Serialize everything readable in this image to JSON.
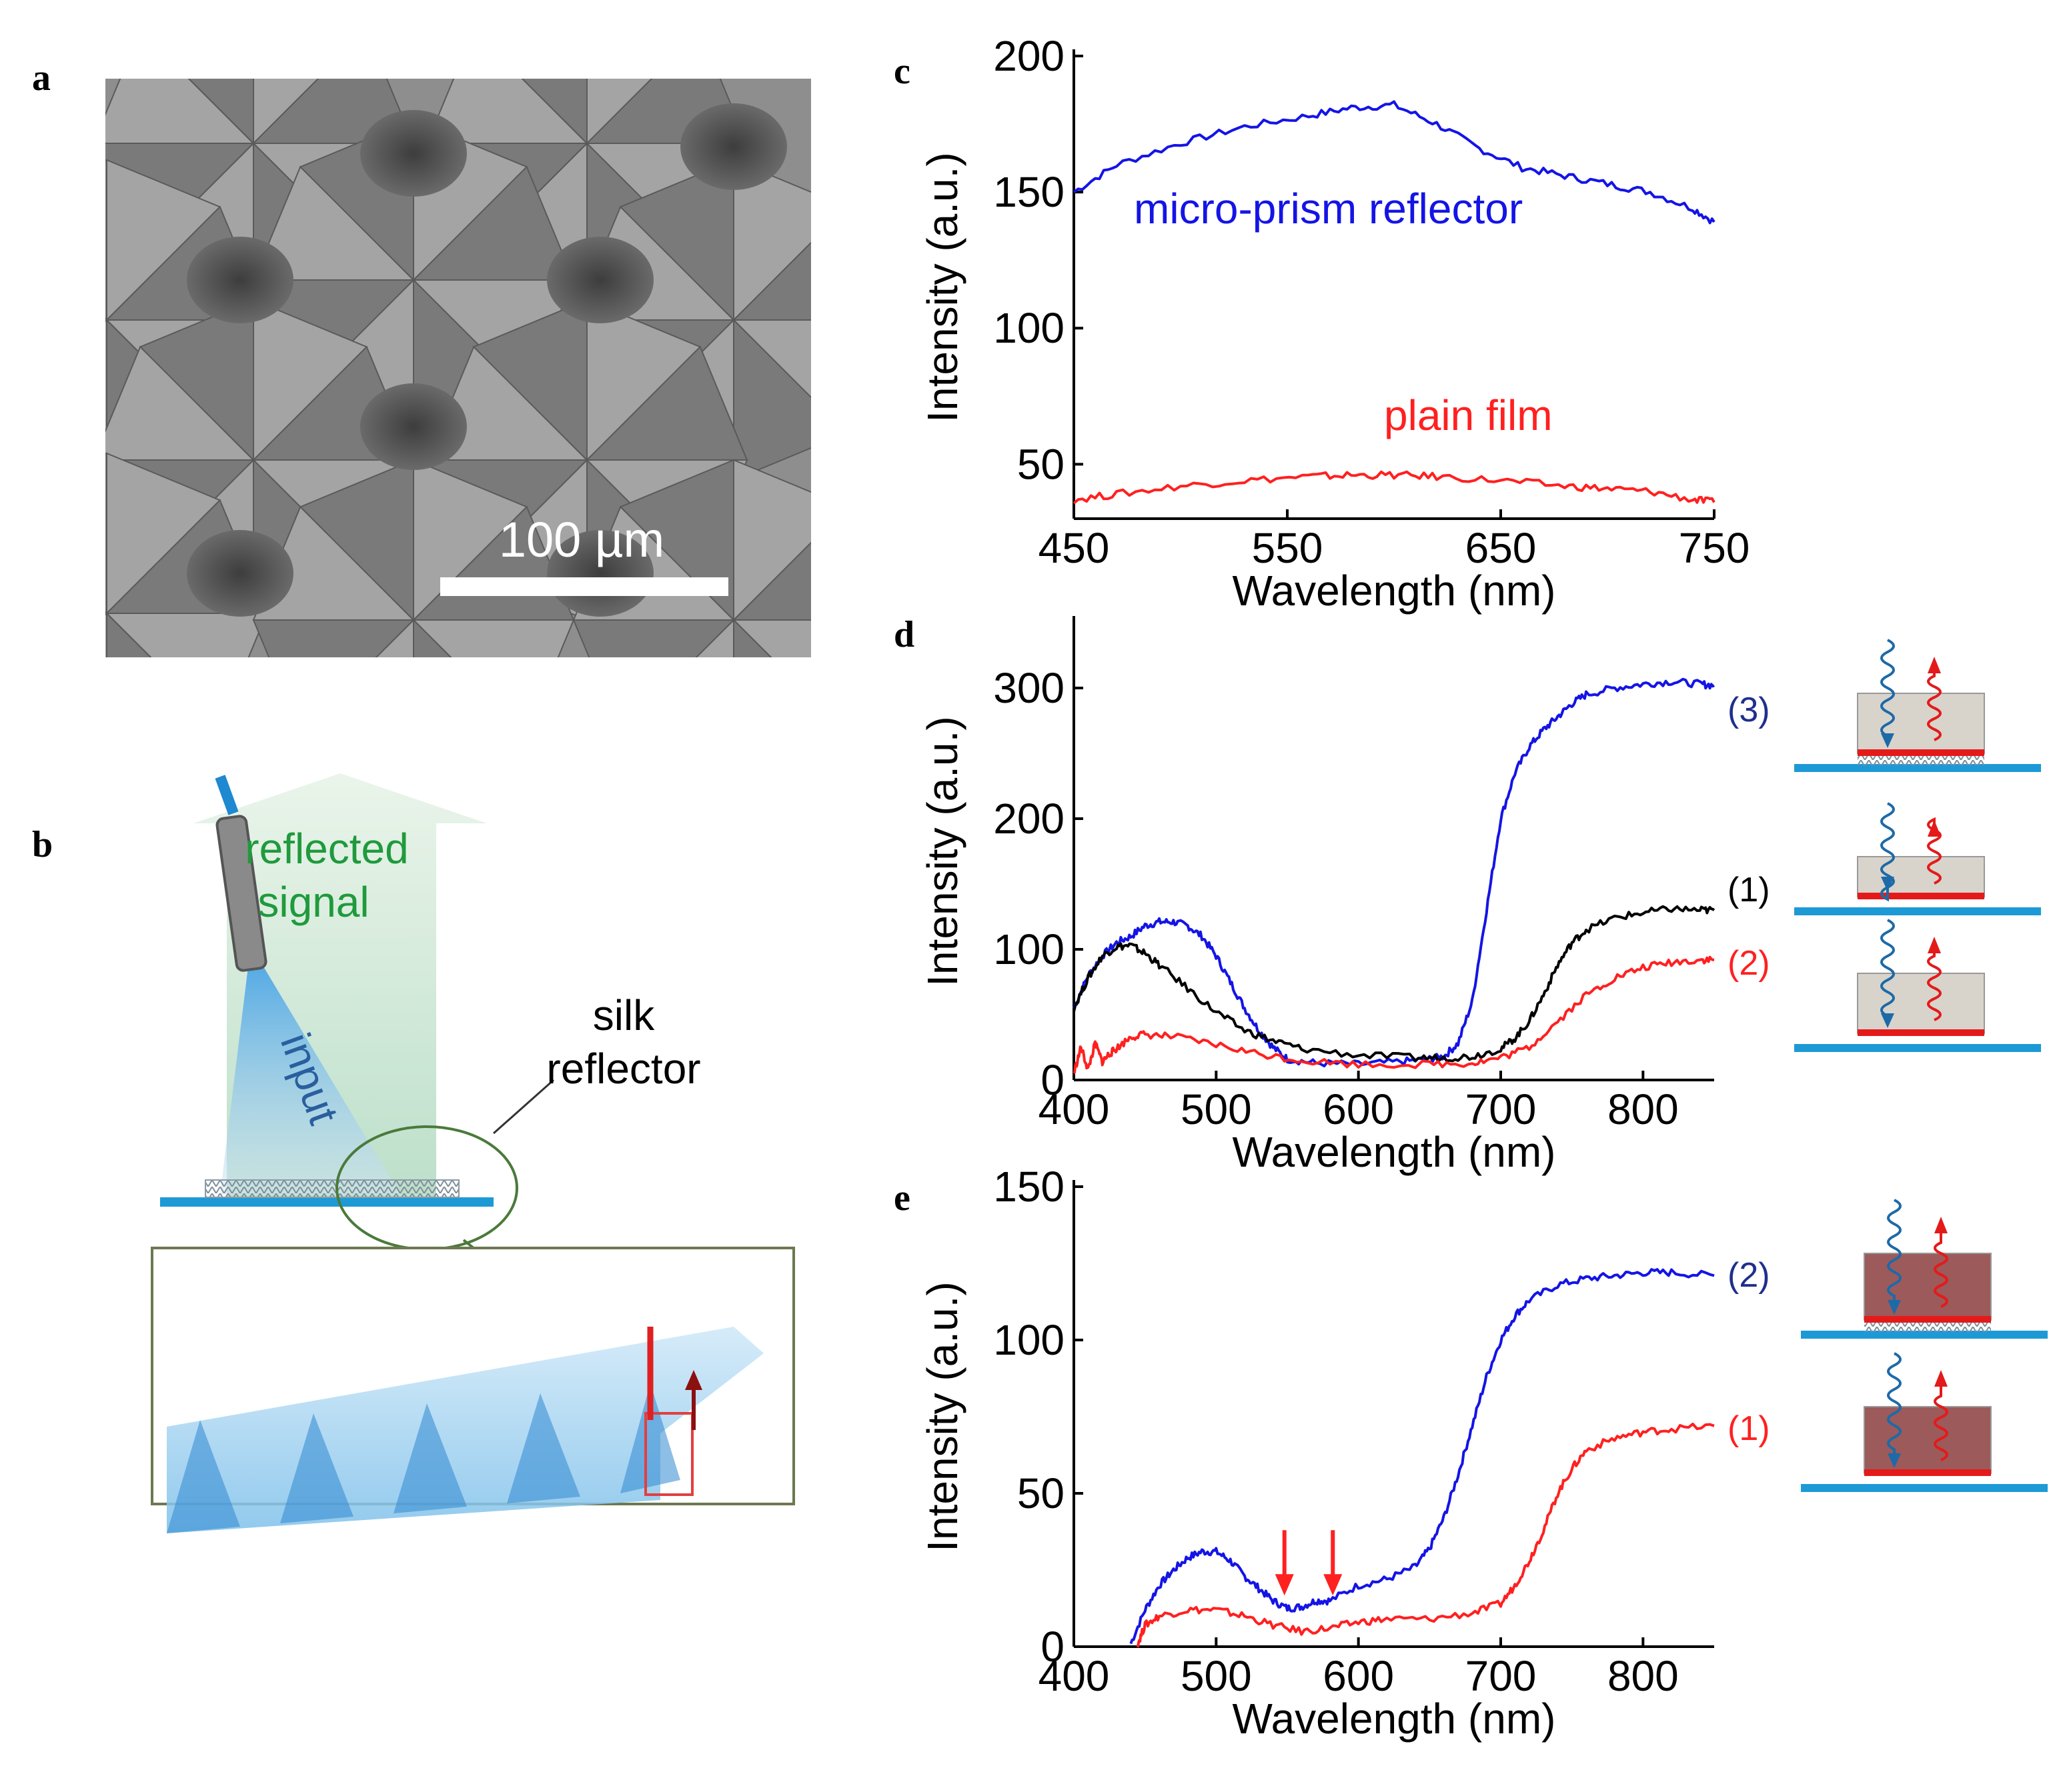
{
  "panel_a": {
    "label": "a",
    "scale_bar_text": "100 µm"
  },
  "panel_b": {
    "label": "b",
    "reflected_signal_line1": "reflected",
    "reflected_signal_line2": "signal",
    "input_text": "input",
    "silk_reflector_line1": "silk",
    "silk_reflector_line2": "reflector"
  },
  "colors": {
    "blue": "#1414e6",
    "red": "#ff2020",
    "black": "#000000",
    "green_text": "#1f9a3c",
    "navy": "#1f2f8c"
  },
  "chart_data": [
    {
      "id": "c",
      "label": "c",
      "type": "line",
      "xlabel": "Wavelength (nm)",
      "ylabel": "Intensity (a.u.)",
      "xlim": [
        450,
        750
      ],
      "ylim": [
        30,
        200
      ],
      "xticks": [
        450,
        550,
        650,
        750
      ],
      "yticks": [
        50,
        100,
        150,
        200
      ],
      "series": [
        {
          "name": "micro-prism reflector",
          "color": "#1414e6",
          "x": [
            450,
            470,
            500,
            530,
            560,
            580,
            600,
            620,
            640,
            660,
            680,
            700,
            720,
            740,
            750
          ],
          "y": [
            150,
            160,
            168,
            174,
            178,
            181,
            182,
            175,
            166,
            159,
            156,
            153,
            150,
            144,
            139
          ]
        },
        {
          "name": "plain film",
          "color": "#ff2020",
          "x": [
            450,
            470,
            500,
            530,
            560,
            580,
            600,
            620,
            650,
            680,
            700,
            720,
            740,
            750
          ],
          "y": [
            37,
            39,
            42,
            44,
            45.5,
            46,
            46,
            45.5,
            44,
            42,
            41,
            40,
            37,
            36
          ]
        }
      ],
      "annotations": [
        {
          "text": "micro-prism reflector",
          "color": "#1414e6"
        },
        {
          "text": "plain film",
          "color": "#ff2020"
        }
      ]
    },
    {
      "id": "d",
      "label": "d",
      "type": "line",
      "xlabel": "Wavelength (nm)",
      "ylabel": "Intensity (a.u.)",
      "xlim": [
        400,
        850
      ],
      "ylim": [
        0,
        350
      ],
      "xticks": [
        400,
        500,
        600,
        700,
        800
      ],
      "yticks": [
        0,
        100,
        200,
        300
      ],
      "series": [
        {
          "name": "(3)",
          "color": "#1414e6",
          "x": [
            400,
            410,
            420,
            430,
            440,
            450,
            460,
            470,
            480,
            490,
            500,
            510,
            520,
            530,
            540,
            550,
            570,
            600,
            630,
            650,
            660,
            670,
            680,
            690,
            700,
            710,
            720,
            730,
            740,
            750,
            760,
            780,
            800,
            820,
            840,
            850
          ],
          "y": [
            55,
            80,
            95,
            105,
            110,
            118,
            121,
            121,
            118,
            110,
            95,
            75,
            55,
            38,
            25,
            16,
            13,
            12,
            14,
            16,
            18,
            28,
            60,
            130,
            200,
            235,
            255,
            268,
            278,
            288,
            295,
            300,
            303,
            305,
            303,
            302
          ]
        },
        {
          "name": "(1)",
          "color": "#000000",
          "x": [
            400,
            410,
            420,
            430,
            440,
            450,
            460,
            480,
            500,
            520,
            540,
            560,
            600,
            640,
            660,
            680,
            700,
            710,
            720,
            730,
            740,
            750,
            760,
            780,
            800,
            820,
            840,
            850
          ],
          "y": [
            55,
            78,
            95,
            102,
            103,
            97,
            88,
            70,
            52,
            38,
            30,
            24,
            19,
            17,
            17,
            18,
            24,
            32,
            45,
            65,
            88,
            105,
            115,
            124,
            128,
            131,
            130,
            130
          ]
        },
        {
          "name": "(2)",
          "color": "#ff2020",
          "x": [
            400,
            405,
            410,
            415,
            420,
            425,
            430,
            440,
            450,
            470,
            500,
            530,
            560,
            600,
            650,
            680,
            700,
            720,
            740,
            760,
            780,
            800,
            820,
            840,
            850
          ],
          "y": [
            5,
            25,
            8,
            28,
            14,
            20,
            24,
            33,
            35,
            33,
            27,
            20,
            15,
            12,
            12,
            13,
            17,
            25,
            45,
            65,
            78,
            86,
            90,
            92,
            92
          ]
        }
      ],
      "annotations": [
        {
          "text": "(3)",
          "color": "#1f2f8c"
        },
        {
          "text": "(1)",
          "color": "#000000"
        },
        {
          "text": "(2)",
          "color": "#ff2020"
        }
      ]
    },
    {
      "id": "e",
      "label": "e",
      "type": "line",
      "xlabel": "Wavelength (nm)",
      "ylabel": "Intensity (a.u.)",
      "xlim": [
        400,
        850
      ],
      "ylim": [
        0,
        150
      ],
      "xticks": [
        400,
        500,
        600,
        700,
        800
      ],
      "yticks": [
        0,
        50,
        100,
        150
      ],
      "series": [
        {
          "name": "(2)",
          "color": "#1414e6",
          "x": [
            440,
            450,
            460,
            470,
            480,
            490,
            500,
            510,
            520,
            530,
            540,
            550,
            560,
            570,
            580,
            600,
            620,
            640,
            650,
            660,
            670,
            680,
            690,
            700,
            710,
            720,
            740,
            760,
            780,
            800,
            820,
            850
          ],
          "y": [
            1,
            12,
            20,
            25,
            29,
            31,
            31,
            28,
            23,
            19,
            15,
            12.5,
            13,
            15,
            15,
            20,
            22,
            26,
            32,
            42,
            56,
            72,
            88,
            100,
            108,
            113,
            118,
            120,
            121,
            122,
            122,
            121
          ]
        },
        {
          "name": "(1)",
          "color": "#ff2020",
          "x": [
            445,
            450,
            460,
            480,
            500,
            520,
            540,
            560,
            580,
            600,
            620,
            650,
            680,
            700,
            710,
            720,
            730,
            740,
            750,
            760,
            780,
            800,
            820,
            850
          ],
          "y": [
            1,
            7,
            10,
            12,
            12,
            10,
            7,
            5,
            6,
            8,
            9,
            9,
            11,
            14,
            20,
            28,
            38,
            50,
            58,
            64,
            68,
            70,
            71,
            72
          ]
        }
      ],
      "markers": [
        {
          "type": "arrow",
          "x": 548,
          "color": "#ff2020"
        },
        {
          "type": "arrow",
          "x": 582,
          "color": "#ff2020"
        }
      ],
      "annotations": [
        {
          "text": "(2)",
          "color": "#1f2f8c"
        },
        {
          "text": "(1)",
          "color": "#ff2020"
        }
      ]
    }
  ]
}
